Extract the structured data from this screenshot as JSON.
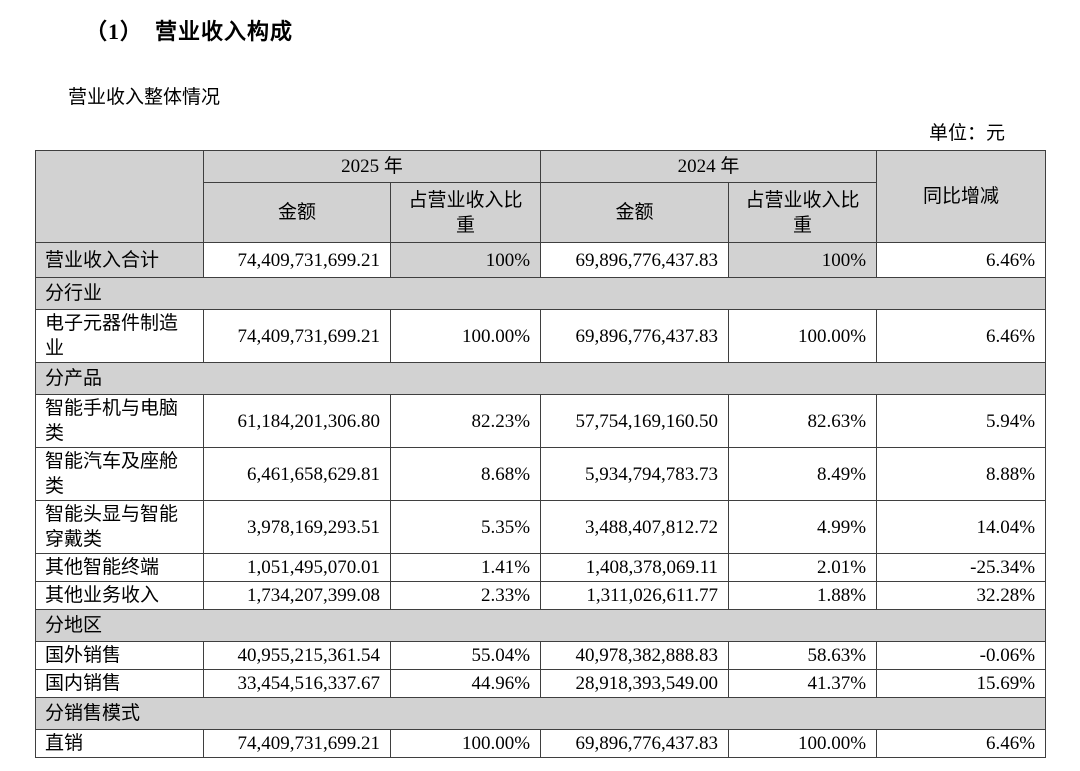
{
  "page": {
    "title": "（1）　营业收入构成",
    "subtitle": "营业收入整体情况",
    "unit_label": "单位：元"
  },
  "table": {
    "colors": {
      "header_bg": "#d2d2d2",
      "border": "#3f3f3f"
    },
    "header": {
      "year_2025": "2025 年",
      "year_2024": "2024 年",
      "amount": "金额",
      "pct": "占营业收入比重",
      "yoy": "同比增减"
    },
    "rows": [
      {
        "type": "total",
        "label": "营业收入合计",
        "a2025": "74,409,731,699.21",
        "p2025": "100%",
        "a2024": "69,896,776,437.83",
        "p2024": "100%",
        "yoy": "6.46%"
      },
      {
        "type": "section",
        "label": "分行业"
      },
      {
        "type": "data",
        "label": "电子元器件制造业",
        "a2025": "74,409,731,699.21",
        "p2025": "100.00%",
        "a2024": "69,896,776,437.83",
        "p2024": "100.00%",
        "yoy": "6.46%"
      },
      {
        "type": "section",
        "label": "分产品"
      },
      {
        "type": "data",
        "label": "智能手机与电脑类",
        "a2025": "61,184,201,306.80",
        "p2025": "82.23%",
        "a2024": "57,754,169,160.50",
        "p2024": "82.63%",
        "yoy": "5.94%"
      },
      {
        "type": "data",
        "label": "智能汽车及座舱类",
        "a2025": "6,461,658,629.81",
        "p2025": "8.68%",
        "a2024": "5,934,794,783.73",
        "p2024": "8.49%",
        "yoy": "8.88%"
      },
      {
        "type": "data",
        "label": "智能头显与智能穿戴类",
        "a2025": "3,978,169,293.51",
        "p2025": "5.35%",
        "a2024": "3,488,407,812.72",
        "p2024": "4.99%",
        "yoy": "14.04%"
      },
      {
        "type": "data",
        "label": "其他智能终端",
        "a2025": "1,051,495,070.01",
        "p2025": "1.41%",
        "a2024": "1,408,378,069.11",
        "p2024": "2.01%",
        "yoy": "-25.34%"
      },
      {
        "type": "data",
        "label": "其他业务收入",
        "a2025": "1,734,207,399.08",
        "p2025": "2.33%",
        "a2024": "1,311,026,611.77",
        "p2024": "1.88%",
        "yoy": "32.28%"
      },
      {
        "type": "section",
        "label": "分地区"
      },
      {
        "type": "data",
        "label": "国外销售",
        "a2025": "40,955,215,361.54",
        "p2025": "55.04%",
        "a2024": "40,978,382,888.83",
        "p2024": "58.63%",
        "yoy": "-0.06%"
      },
      {
        "type": "data",
        "label": "国内销售",
        "a2025": "33,454,516,337.67",
        "p2025": "44.96%",
        "a2024": "28,918,393,549.00",
        "p2024": "41.37%",
        "yoy": "15.69%"
      },
      {
        "type": "section",
        "label": "分销售模式"
      },
      {
        "type": "data",
        "label": "直销",
        "a2025": "74,409,731,699.21",
        "p2025": "100.00%",
        "a2024": "69,896,776,437.83",
        "p2024": "100.00%",
        "yoy": "6.46%"
      }
    ]
  }
}
